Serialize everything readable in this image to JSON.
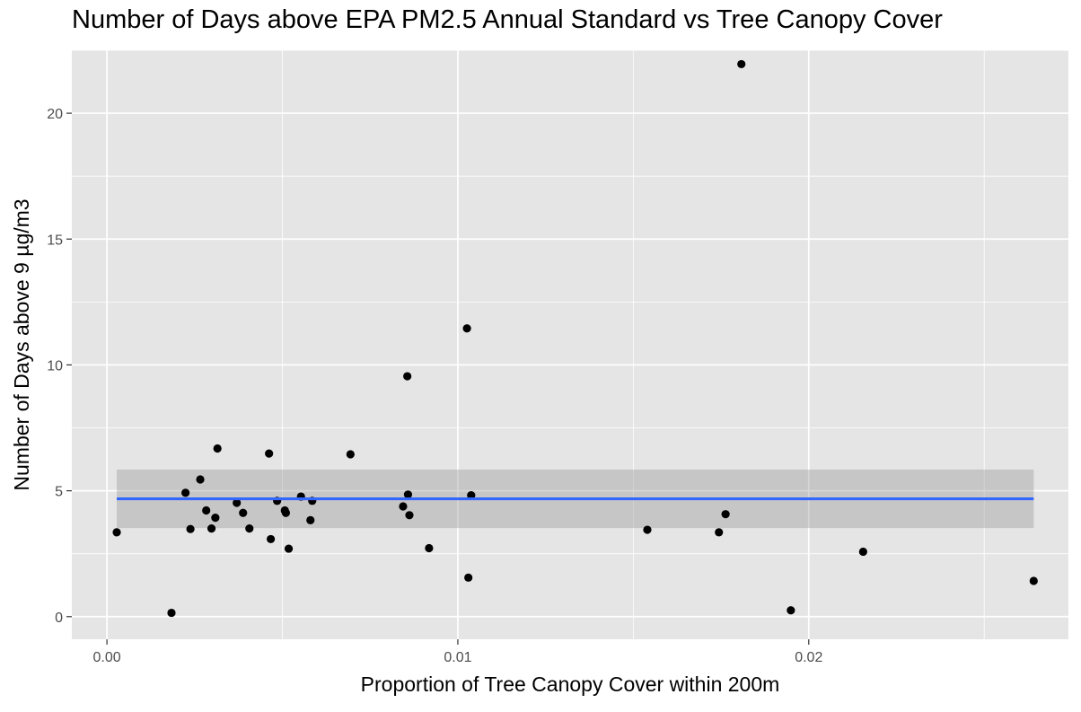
{
  "chart_data": {
    "type": "scatter",
    "title": "Number of Days above EPA PM2.5 Annual Standard vs Tree Canopy Cover",
    "xlabel": "Proportion of Tree Canopy Cover within 200m",
    "ylabel": "Number of Days above 9 µg/m3",
    "xlim": [
      -0.001,
      0.0274
    ],
    "ylim": [
      -0.9,
      22.5
    ],
    "x_ticks": [
      0.0,
      0.01,
      0.02
    ],
    "x_tick_labels": [
      "0.00",
      "0.01",
      "0.02"
    ],
    "y_ticks": [
      0,
      5,
      10,
      15,
      20
    ],
    "y_tick_labels": [
      "0",
      "5",
      "10",
      "15",
      "20"
    ],
    "grid": true,
    "legend": "none",
    "colors": {
      "panel": "#e5e5e5",
      "grid": "#ffffff",
      "point": "#000000",
      "trend": "#3366ff",
      "band": "#999999"
    },
    "points": [
      {
        "x": 0.00028,
        "y": 3.35
      },
      {
        "x": 0.00184,
        "y": 0.15
      },
      {
        "x": 0.00224,
        "y": 4.92
      },
      {
        "x": 0.00238,
        "y": 3.48
      },
      {
        "x": 0.00266,
        "y": 5.45
      },
      {
        "x": 0.00283,
        "y": 4.22
      },
      {
        "x": 0.00298,
        "y": 3.5
      },
      {
        "x": 0.00309,
        "y": 3.93
      },
      {
        "x": 0.00315,
        "y": 6.68
      },
      {
        "x": 0.0037,
        "y": 4.52
      },
      {
        "x": 0.00388,
        "y": 4.12
      },
      {
        "x": 0.00406,
        "y": 3.5
      },
      {
        "x": 0.00462,
        "y": 6.48
      },
      {
        "x": 0.00467,
        "y": 3.08
      },
      {
        "x": 0.00485,
        "y": 4.6
      },
      {
        "x": 0.00507,
        "y": 4.22
      },
      {
        "x": 0.0051,
        "y": 4.12
      },
      {
        "x": 0.00518,
        "y": 2.7
      },
      {
        "x": 0.00553,
        "y": 4.77
      },
      {
        "x": 0.0058,
        "y": 3.83
      },
      {
        "x": 0.00585,
        "y": 4.6
      },
      {
        "x": 0.00694,
        "y": 6.45
      },
      {
        "x": 0.00844,
        "y": 4.38
      },
      {
        "x": 0.00856,
        "y": 9.55
      },
      {
        "x": 0.00858,
        "y": 4.85
      },
      {
        "x": 0.00862,
        "y": 4.03
      },
      {
        "x": 0.00918,
        "y": 2.72
      },
      {
        "x": 0.01026,
        "y": 11.45
      },
      {
        "x": 0.0103,
        "y": 1.55
      },
      {
        "x": 0.01038,
        "y": 4.82
      },
      {
        "x": 0.0154,
        "y": 3.45
      },
      {
        "x": 0.01744,
        "y": 3.35
      },
      {
        "x": 0.01763,
        "y": 4.07
      },
      {
        "x": 0.01808,
        "y": 21.95
      },
      {
        "x": 0.01949,
        "y": 0.25
      },
      {
        "x": 0.02155,
        "y": 2.58
      },
      {
        "x": 0.02641,
        "y": 1.42
      }
    ],
    "trend": {
      "x": [
        0.00028,
        0.02641
      ],
      "y": [
        4.68,
        4.68
      ]
    },
    "band": {
      "x": [
        0.00028,
        0.02641
      ],
      "lower": [
        3.52,
        3.52
      ],
      "upper": [
        5.84,
        5.84
      ]
    }
  }
}
